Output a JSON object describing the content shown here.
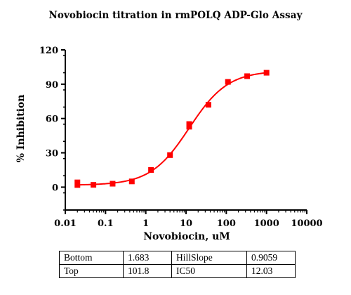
{
  "chart_data": {
    "type": "scatter",
    "title": "Novobiocin titration in rmPOLQ ADP-Glo Assay",
    "xlabel": "Novobiocin, uM",
    "ylabel": "% Inhibition",
    "xscale": "log",
    "xlim": [
      0.01,
      10000
    ],
    "ylim": [
      -20,
      120
    ],
    "xticks": [
      {
        "value": 0.01,
        "label": "0.01"
      },
      {
        "value": 0.1,
        "label": "0.1"
      },
      {
        "value": 1,
        "label": "1"
      },
      {
        "value": 10,
        "label": "10"
      },
      {
        "value": 100,
        "label": "100"
      },
      {
        "value": 1000,
        "label": "1000"
      },
      {
        "value": 10000,
        "label": "10000"
      }
    ],
    "yticks": [
      {
        "value": 0,
        "label": "0"
      },
      {
        "value": 30,
        "label": "30"
      },
      {
        "value": 60,
        "label": "60"
      },
      {
        "value": 90,
        "label": "90"
      },
      {
        "value": 120,
        "label": "120"
      }
    ],
    "color": "#ff0000",
    "series": [
      {
        "points": [
          {
            "x": 0.02,
            "y": 3,
            "err": 3
          },
          {
            "x": 0.05,
            "y": 2
          },
          {
            "x": 0.15,
            "y": 3
          },
          {
            "x": 0.45,
            "y": 5
          },
          {
            "x": 1.35,
            "y": 15
          },
          {
            "x": 4,
            "y": 28
          },
          {
            "x": 12,
            "y": 54,
            "err": 3
          },
          {
            "x": 36,
            "y": 72
          },
          {
            "x": 110,
            "y": 92
          },
          {
            "x": 330,
            "y": 97
          },
          {
            "x": 1000,
            "y": 100
          }
        ]
      }
    ],
    "fit": {
      "bottom": 1.683,
      "top": 101.8,
      "hillslope": 0.9059,
      "ic50": 12.03
    },
    "parameters_table": {
      "rows": [
        [
          {
            "name": "Bottom",
            "value": "1.683"
          },
          {
            "name": "HillSlope",
            "value": "0.9059"
          }
        ],
        [
          {
            "name": "Top",
            "value": "101.8"
          },
          {
            "name": "IC50",
            "value": "12.03"
          }
        ]
      ]
    }
  }
}
